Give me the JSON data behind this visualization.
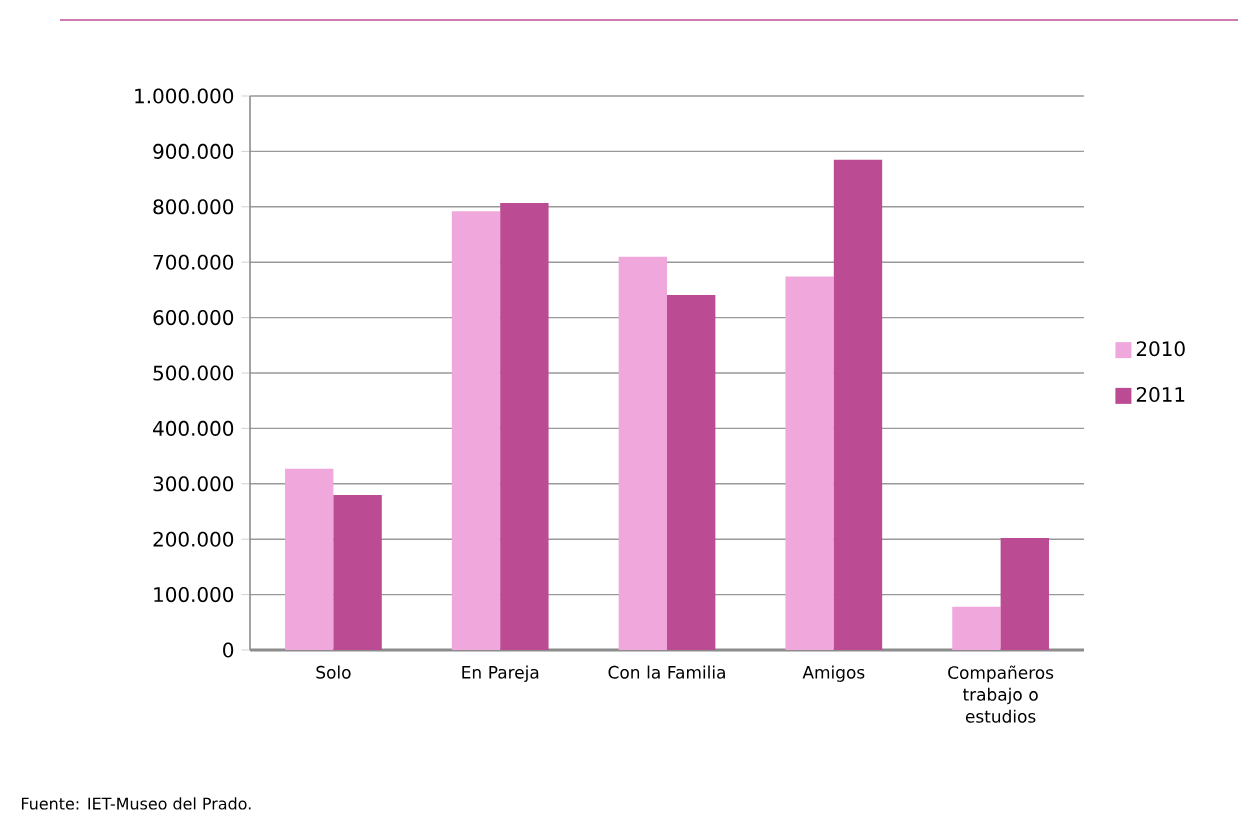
{
  "chart_data": {
    "type": "bar",
    "categories": [
      "Solo",
      "En Pareja",
      "Con la Familia",
      "Amigos",
      "Compañeros trabajo o estudios"
    ],
    "series": [
      {
        "name": "2010",
        "color": "#f0a8dc",
        "values": [
          327000,
          792000,
          710000,
          674000,
          78000
        ]
      },
      {
        "name": "2011",
        "color": "#bb4b93",
        "values": [
          280000,
          807000,
          641000,
          885000,
          202000
        ]
      }
    ],
    "ylim": [
      0,
      1000000
    ],
    "yticks": [
      0,
      {
        "value": 100000,
        "label": "100.000"
      },
      {
        "value": 200000,
        "label": "200.000"
      },
      {
        "value": 300000,
        "label": "300.000"
      },
      {
        "value": 400000,
        "label": "400.000"
      },
      {
        "value": 500000,
        "label": "500.000"
      },
      {
        "value": 600000,
        "label": "600.000"
      },
      {
        "value": 700000,
        "label": "700.000"
      },
      {
        "value": 800000,
        "label": "800.000"
      },
      {
        "value": 900000,
        "label": "900.000"
      },
      {
        "value": 1000000,
        "label": "1.000.000"
      }
    ],
    "grid": "y",
    "legend": "right",
    "annotations": [
      "Fuente: IET-Museo del Prado."
    ]
  }
}
